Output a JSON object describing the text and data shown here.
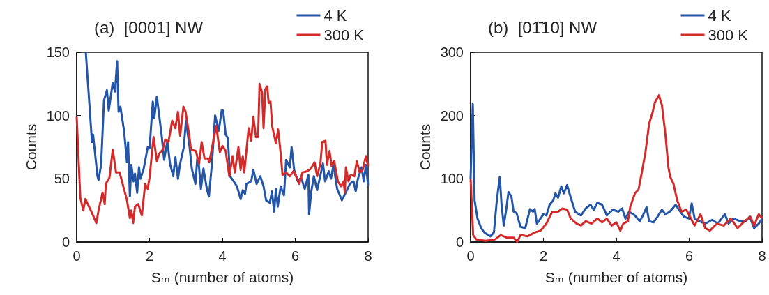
{
  "chart_data": [
    {
      "type": "line",
      "title": "(a)  [0001] NW",
      "xlabel": "Sₘ (number of atoms)",
      "ylabel": "Counts",
      "xlim": [
        0,
        8
      ],
      "xticks": [
        0,
        2,
        4,
        6,
        8
      ],
      "ylim": [
        0,
        150
      ],
      "yticks": [
        0,
        50,
        100,
        150
      ],
      "legend": "top right",
      "series": [
        {
          "name": "4 K",
          "color": "#2356a8",
          "x": [
            0.25,
            0.32,
            0.42,
            0.45,
            0.57,
            0.6,
            0.67,
            0.75,
            0.83,
            0.88,
            0.99,
            1.05,
            1.11,
            1.15,
            1.2,
            1.3,
            1.38,
            1.41,
            1.46,
            1.5,
            1.56,
            1.6,
            1.66,
            1.71,
            1.75,
            1.84,
            1.95,
            2.0,
            2.09,
            2.13,
            2.2,
            2.33,
            2.4,
            2.49,
            2.56,
            2.65,
            2.71,
            2.78,
            2.84,
            2.94,
            3.0,
            3.1,
            3.16,
            3.26,
            3.31,
            3.35,
            3.41,
            3.48,
            3.58,
            3.63,
            3.71,
            3.8,
            3.9,
            3.98,
            4.02,
            4.09,
            4.15,
            4.21,
            4.31,
            4.4,
            4.5,
            4.56,
            4.62,
            4.66,
            4.79,
            4.85,
            4.94,
            5.04,
            5.13,
            5.2,
            5.3,
            5.36,
            5.42,
            5.47,
            5.52,
            5.6,
            5.69,
            5.75,
            5.85,
            5.9,
            5.97,
            6.07,
            6.16,
            6.26,
            6.36,
            6.38,
            6.44,
            6.51,
            6.6,
            6.76,
            6.82,
            6.92,
            6.98,
            7.05,
            7.15,
            7.28,
            7.4,
            7.5,
            7.6,
            7.66,
            7.72,
            7.82,
            7.88,
            7.94,
            8.0
          ],
          "values": [
            150,
            121,
            79,
            85,
            52,
            49,
            61,
            112,
            120,
            104,
            126,
            119,
            143,
            103,
            107,
            88,
            63,
            79,
            36,
            61,
            48,
            54,
            39,
            59,
            50,
            58,
            75,
            74,
            111,
            98,
            115,
            85,
            65,
            80,
            62,
            52,
            67,
            50,
            62,
            75,
            96,
            75,
            58,
            46,
            66,
            62,
            42,
            58,
            41,
            36,
            61,
            100,
            88,
            104,
            104,
            85,
            82,
            52,
            48,
            44,
            34,
            41,
            38,
            46,
            48,
            57,
            46,
            52,
            44,
            33,
            31,
            40,
            24,
            42,
            28,
            44,
            37,
            65,
            59,
            75,
            57,
            48,
            51,
            42,
            53,
            22,
            40,
            52,
            41,
            62,
            48,
            56,
            50,
            61,
            42,
            33,
            40,
            46,
            48,
            40,
            50,
            59,
            48,
            61,
            45
          ]
        },
        {
          "name": "300 K",
          "color": "#d42a2a",
          "x": [
            0,
            0.1,
            0.18,
            0.24,
            0.42,
            0.54,
            0.6,
            0.71,
            0.77,
            0.8,
            0.9,
            0.99,
            1.08,
            1.18,
            1.27,
            1.38,
            1.46,
            1.5,
            1.55,
            1.6,
            1.69,
            1.79,
            1.88,
            1.95,
            2.0,
            2.11,
            2.2,
            2.27,
            2.36,
            2.43,
            2.52,
            2.62,
            2.71,
            2.78,
            2.84,
            2.93,
            2.99,
            3.08,
            3.14,
            3.27,
            3.36,
            3.43,
            3.51,
            3.6,
            3.64,
            3.77,
            3.83,
            3.93,
            4.0,
            4.09,
            4.19,
            4.28,
            4.34,
            4.44,
            4.5,
            4.56,
            4.6,
            4.69,
            4.72,
            4.79,
            4.85,
            4.92,
            4.98,
            5.02,
            5.09,
            5.13,
            5.18,
            5.23,
            5.27,
            5.32,
            5.37,
            5.47,
            5.53,
            5.6,
            5.65,
            5.75,
            5.85,
            5.95,
            6.04,
            6.11,
            6.2,
            6.33,
            6.43,
            6.53,
            6.6,
            6.69,
            6.74,
            6.83,
            6.87,
            6.94,
            7.0,
            7.07,
            7.17,
            7.26,
            7.33,
            7.36,
            7.39,
            7.46,
            7.52,
            7.62,
            7.69,
            7.77,
            7.85,
            7.94,
            8.0
          ],
          "values": [
            99,
            35,
            25,
            34,
            23,
            15,
            25,
            39,
            30,
            46,
            51,
            73,
            55,
            55,
            45,
            33,
            19,
            25,
            15,
            28,
            30,
            21,
            46,
            42,
            51,
            83,
            64,
            70,
            73,
            81,
            79,
            96,
            90,
            103,
            84,
            107,
            103,
            86,
            73,
            72,
            62,
            79,
            66,
            66,
            63,
            83,
            92,
            71,
            76,
            72,
            52,
            68,
            55,
            75,
            57,
            68,
            55,
            81,
            90,
            80,
            99,
            83,
            83,
            125,
            118,
            90,
            121,
            123,
            110,
            111,
            91,
            78,
            89,
            70,
            53,
            55,
            52,
            56,
            51,
            46,
            55,
            56,
            58,
            63,
            52,
            62,
            79,
            80,
            61,
            72,
            60,
            64,
            48,
            44,
            48,
            39,
            59,
            48,
            53,
            52,
            64,
            55,
            57,
            68,
            60
          ]
        }
      ]
    },
    {
      "type": "line",
      "title": "(b)  [01̄10] NW",
      "xlabel": "Sₘ (number of atoms)",
      "ylabel": "Counts",
      "xlim": [
        0,
        8
      ],
      "xticks": [
        0,
        2,
        4,
        6,
        8
      ],
      "ylim": [
        0,
        300
      ],
      "yticks": [
        0,
        100,
        200,
        300
      ],
      "legend": "top right",
      "series": [
        {
          "name": "4 K",
          "color": "#2356a8",
          "x": [
            0,
            0.06,
            0.11,
            0.19,
            0.29,
            0.38,
            0.54,
            0.64,
            0.72,
            0.8,
            0.85,
            0.91,
            0.98,
            1.04,
            1.12,
            1.18,
            1.26,
            1.37,
            1.5,
            1.63,
            1.71,
            1.76,
            1.82,
            1.92,
            2.0,
            2.08,
            2.17,
            2.27,
            2.33,
            2.4,
            2.49,
            2.56,
            2.65,
            2.75,
            2.87,
            3.03,
            3.16,
            3.29,
            3.38,
            3.48,
            3.61,
            3.74,
            3.9,
            4.06,
            4.16,
            4.25,
            4.35,
            4.51,
            4.64,
            4.73,
            4.83,
            4.9,
            5.02,
            5.12,
            5.25,
            5.35,
            5.47,
            5.63,
            5.73,
            5.86,
            5.99,
            6.07,
            6.15,
            6.28,
            6.44,
            6.63,
            6.79,
            6.89,
            6.98,
            7.08,
            7.21,
            7.4,
            7.56,
            7.66,
            7.78,
            7.91,
            8.0
          ],
          "values": [
            100,
            218,
            66,
            37,
            22,
            15,
            9,
            15,
            66,
            103,
            59,
            26,
            52,
            79,
            72,
            48,
            46,
            24,
            22,
            52,
            48,
            52,
            29,
            37,
            44,
            42,
            59,
            66,
            77,
            70,
            88,
            77,
            90,
            70,
            48,
            42,
            53,
            59,
            51,
            62,
            59,
            42,
            51,
            48,
            53,
            37,
            48,
            42,
            33,
            42,
            55,
            33,
            31,
            39,
            51,
            44,
            48,
            59,
            50,
            40,
            37,
            61,
            37,
            33,
            29,
            35,
            29,
            37,
            44,
            29,
            37,
            33,
            33,
            40,
            22,
            29,
            37
          ]
        },
        {
          "name": "300 K",
          "color": "#d42a2a",
          "x": [
            0,
            0.07,
            0.16,
            0.41,
            0.67,
            0.83,
            0.99,
            1.18,
            1.28,
            1.37,
            1.56,
            1.76,
            1.92,
            2.08,
            2.24,
            2.4,
            2.52,
            2.65,
            2.75,
            2.91,
            3.03,
            3.16,
            3.32,
            3.48,
            3.61,
            3.74,
            3.87,
            4.0,
            4.11,
            4.19,
            4.32,
            4.38,
            4.51,
            4.61,
            4.7,
            4.8,
            4.9,
            5.0,
            5.06,
            5.17,
            5.25,
            5.35,
            5.43,
            5.48,
            5.57,
            5.67,
            5.79,
            5.92,
            6.05,
            6.15,
            6.31,
            6.44,
            6.57,
            6.76,
            6.95,
            7.14,
            7.33,
            7.52,
            7.68,
            7.78,
            7.91,
            8.0
          ],
          "values": [
            100,
            11,
            4,
            2,
            4,
            11,
            7,
            7,
            0,
            11,
            9,
            15,
            18,
            29,
            48,
            48,
            53,
            51,
            37,
            29,
            26,
            33,
            29,
            37,
            31,
            37,
            26,
            31,
            18,
            29,
            33,
            55,
            77,
            83,
            110,
            142,
            187,
            206,
            221,
            232,
            217,
            169,
            118,
            103,
            92,
            66,
            48,
            51,
            37,
            26,
            44,
            22,
            18,
            29,
            26,
            37,
            22,
            33,
            40,
            26,
            44,
            37
          ]
        }
      ]
    }
  ]
}
